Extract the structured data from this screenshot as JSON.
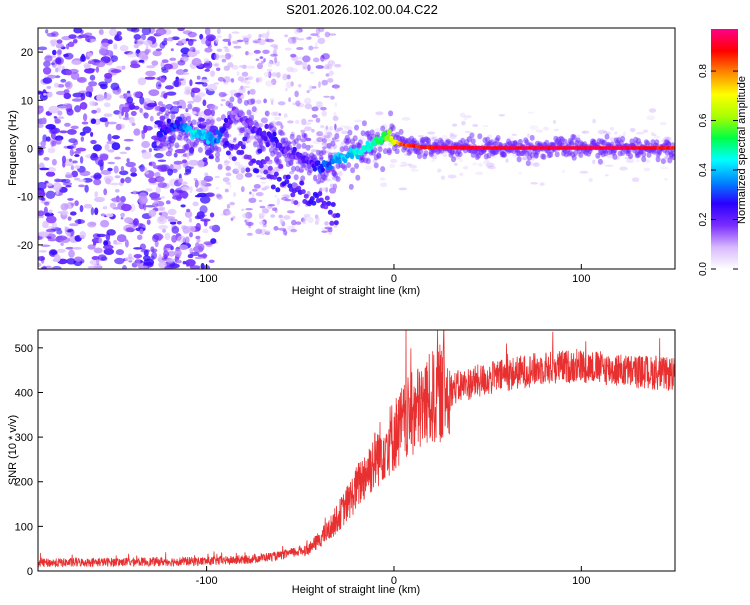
{
  "title": "S201.2026.102.00.04.C22",
  "chart_data": [
    {
      "type": "heatmap",
      "title": "S201.2026.102.00.04.C22",
      "xlabel": "Height of straight line (km)",
      "ylabel": "Frequency (Hz)",
      "xlim": [
        -190,
        150
      ],
      "ylim": [
        -25,
        25
      ],
      "xticks": [
        -100,
        0,
        100
      ],
      "yticks": [
        -20,
        -10,
        0,
        10,
        20
      ],
      "colorbar": {
        "label": "Normalized spectral amplitude",
        "range": [
          0,
          0.97
        ],
        "ticks": [
          0.0,
          0.2,
          0.4,
          0.6,
          0.8
        ],
        "colormap": [
          "#ffffff",
          "#d8b8ff",
          "#7a2cff",
          "#2a00ff",
          "#0088ff",
          "#00ffff",
          "#00ff44",
          "#aaff00",
          "#ffff00",
          "#ff8800",
          "#ff0000",
          "#ff0088"
        ]
      },
      "ridge": {
        "description": "Dominant frequency track",
        "x": [
          -125,
          -115,
          -105,
          -95,
          -85,
          -75,
          -65,
          -55,
          -45,
          -38,
          -30,
          -20,
          -10,
          -5,
          0,
          5,
          15,
          25,
          50,
          90,
          120,
          150
        ],
        "y": [
          4,
          5,
          3,
          1.5,
          8,
          4,
          2,
          -1,
          -3,
          -4,
          -2,
          -1,
          1,
          2.5,
          1.5,
          0.8,
          0.3,
          0.2,
          0.1,
          0.1,
          0.1,
          0.1
        ],
        "amplitude": [
          0.25,
          0.3,
          0.45,
          0.35,
          0.15,
          0.2,
          0.25,
          0.2,
          0.2,
          0.3,
          0.4,
          0.45,
          0.5,
          0.55,
          0.7,
          0.85,
          0.9,
          0.95,
          0.95,
          0.95,
          0.95,
          0.9
        ]
      }
    },
    {
      "type": "line",
      "xlabel": "Height of straight line (km)",
      "ylabel": "SNR (10 * v/v)",
      "xlim": [
        -190,
        150
      ],
      "ylim": [
        0,
        540
      ],
      "xticks": [
        -100,
        0,
        100
      ],
      "yticks": [
        0,
        100,
        200,
        300,
        400,
        500
      ],
      "series": [
        {
          "name": "SNR",
          "color": "#e83030",
          "trend_x": [
            -190,
            -150,
            -100,
            -80,
            -60,
            -45,
            -35,
            -25,
            -15,
            -5,
            5,
            15,
            25,
            40,
            60,
            80,
            100,
            120,
            150
          ],
          "trend_y": [
            18,
            20,
            22,
            25,
            35,
            50,
            90,
            150,
            220,
            280,
            330,
            370,
            400,
            420,
            440,
            455,
            460,
            450,
            440
          ]
        }
      ]
    }
  ]
}
